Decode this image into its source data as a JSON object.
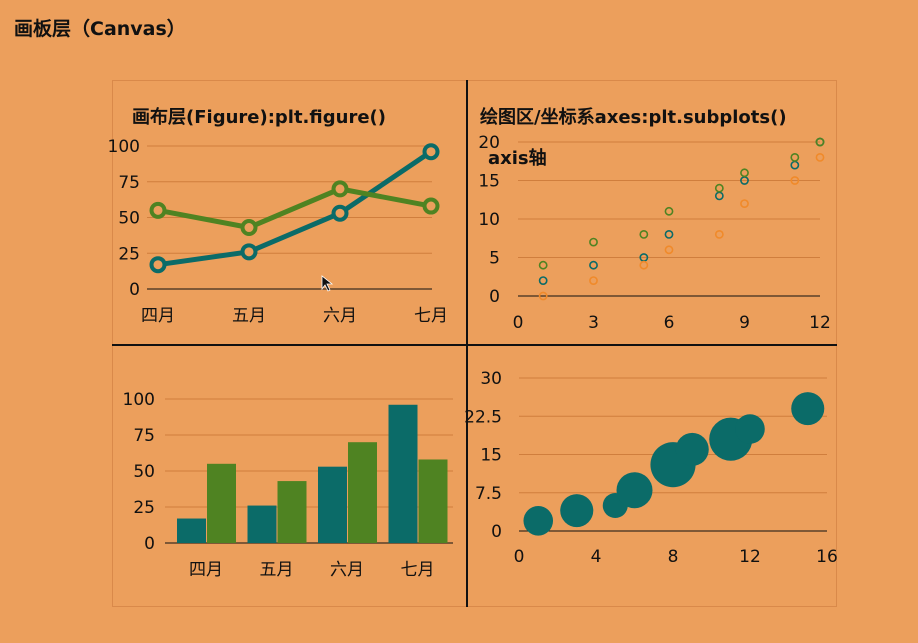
{
  "page": {
    "title": "画板层（Canvas）",
    "figure_label": "画布层(Figure):plt.figure()",
    "axes_label": "绘图区/坐标系axes:plt.subplots()",
    "axis_label": "axis轴"
  },
  "colors": {
    "background": "#ec9f5c",
    "teal": "#0b6b68",
    "green": "#4f8322",
    "orange": "#f08a2a",
    "grid": "#d07e3d"
  },
  "chart_data": [
    {
      "type": "line",
      "categories": [
        "四月",
        "五月",
        "六月",
        "七月"
      ],
      "series": [
        {
          "values": [
            17,
            26,
            53,
            96
          ],
          "color": "#0b6b68"
        },
        {
          "values": [
            55,
            43,
            70,
            58
          ],
          "color": "#4f8322"
        }
      ],
      "yticks": [
        "0",
        "25",
        "50",
        "75",
        "100"
      ],
      "ylim": [
        0,
        100
      ]
    },
    {
      "type": "scatter",
      "series": [
        {
          "x": [
            1,
            3,
            5,
            6,
            8,
            9,
            11,
            12
          ],
          "y": [
            2,
            4,
            5,
            8,
            13,
            15,
            17,
            20
          ],
          "color": "#0b6b68"
        },
        {
          "x": [
            1,
            3,
            5,
            6,
            8,
            9,
            11,
            12
          ],
          "y": [
            4,
            7,
            8,
            11,
            14,
            16,
            18,
            20
          ],
          "color": "#4f8322"
        },
        {
          "x": [
            1,
            3,
            5,
            6,
            8,
            9,
            11,
            12
          ],
          "y": [
            0,
            2,
            4,
            6,
            8,
            12,
            15,
            18
          ],
          "color": "#f08a2a"
        }
      ],
      "xticks": [
        "0",
        "3",
        "6",
        "9",
        "12"
      ],
      "yticks": [
        "0",
        "5",
        "10",
        "15",
        "20"
      ],
      "xlim": [
        0,
        12
      ],
      "ylim": [
        0,
        20
      ]
    },
    {
      "type": "bar",
      "categories": [
        "四月",
        "五月",
        "六月",
        "七月"
      ],
      "series": [
        {
          "values": [
            17,
            26,
            53,
            96
          ],
          "color": "#0b6b68"
        },
        {
          "values": [
            55,
            43,
            70,
            58
          ],
          "color": "#4f8322"
        }
      ],
      "yticks": [
        "0",
        "25",
        "50",
        "75",
        "100"
      ],
      "ylim": [
        0,
        100
      ]
    },
    {
      "type": "scatter",
      "bubble": true,
      "points": [
        {
          "x": 1,
          "y": 2,
          "size": 2
        },
        {
          "x": 3,
          "y": 4,
          "size": 3
        },
        {
          "x": 5,
          "y": 5,
          "size": 1
        },
        {
          "x": 6,
          "y": 8,
          "size": 4
        },
        {
          "x": 8,
          "y": 13,
          "size": 8
        },
        {
          "x": 9,
          "y": 16,
          "size": 3
        },
        {
          "x": 11,
          "y": 18,
          "size": 7
        },
        {
          "x": 12,
          "y": 20,
          "size": 2
        },
        {
          "x": 15,
          "y": 24,
          "size": 3
        }
      ],
      "color": "#0b6b68",
      "xticks": [
        "0",
        "4",
        "8",
        "12",
        "16"
      ],
      "yticks": [
        "0",
        "7.5",
        "15",
        "22.5",
        "30"
      ],
      "xlim": [
        0,
        16
      ],
      "ylim": [
        0,
        30
      ]
    }
  ]
}
